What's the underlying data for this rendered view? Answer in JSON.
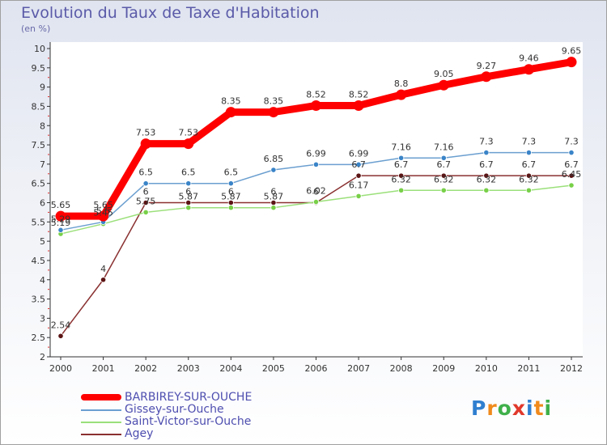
{
  "header": {
    "title": "Evolution du Taux de Taxe d'Habitation",
    "unit": "(en %)"
  },
  "brand": {
    "text": "Proxiti",
    "letter_colors": [
      "#2f7fd0",
      "#f08a1c",
      "#3fb04a",
      "#e0382b",
      "#2f7fd0",
      "#f08a1c",
      "#3fb04a"
    ]
  },
  "chart_data": {
    "type": "line",
    "title": "Evolution du Taux de Taxe d'Habitation",
    "ylabel": "(en %)",
    "xlabel": "",
    "ylim": [
      2,
      10
    ],
    "y_ticks": [
      "2",
      "2.5",
      "3",
      "3.5",
      "4",
      "4.5",
      "5",
      "5.5",
      "6",
      "6.5",
      "7",
      "7.5",
      "8",
      "8.5",
      "9",
      "9.5",
      "10"
    ],
    "categories": [
      "2000",
      "2001",
      "2002",
      "2003",
      "2004",
      "2005",
      "2006",
      "2007",
      "2008",
      "2009",
      "2010",
      "2011",
      "2012"
    ],
    "grid": false,
    "legend_position": "bottom-left",
    "series": [
      {
        "name": "BARBIREY-SUR-OUCHE",
        "color": "#ff0000",
        "marker": "#ff0000",
        "values": [
          5.65,
          5.65,
          7.53,
          7.53,
          8.35,
          8.35,
          8.52,
          8.52,
          8.8,
          9.05,
          9.27,
          9.46,
          9.65
        ],
        "labels": [
          "5.65",
          "5.65",
          "7.53",
          "7.53",
          "8.35",
          "8.35",
          "8.52",
          "8.52",
          "8.8",
          "9.05",
          "9.27",
          "9.46",
          "9.65"
        ]
      },
      {
        "name": "Gissey-sur-Ouche",
        "color": "#6b9fd0",
        "marker": "#3a84c8",
        "values": [
          5.29,
          5.5,
          6.5,
          6.5,
          6.5,
          6.85,
          6.99,
          6.99,
          7.16,
          7.16,
          7.3,
          7.3,
          7.3
        ],
        "labels": [
          "5.29",
          "5.5",
          "6.5",
          "6.5",
          "6.5",
          "6.85",
          "6.99",
          "6.99",
          "7.16",
          "7.16",
          "7.3",
          "7.3",
          "7.3"
        ]
      },
      {
        "name": "Saint-Victor-sur-Ouche",
        "color": "#9be07a",
        "marker": "#78d048",
        "values": [
          5.19,
          5.45,
          5.75,
          5.87,
          5.87,
          5.87,
          6.02,
          6.17,
          6.32,
          6.32,
          6.32,
          6.32,
          6.45
        ],
        "labels": [
          "5.19",
          "5.45",
          "5.75",
          "5.87",
          "5.87",
          "5.87",
          "6.02",
          "6.17",
          "6.32",
          "6.32",
          "6.32",
          "6.32",
          "6.45"
        ]
      },
      {
        "name": "Agey",
        "color": "#8a3030",
        "marker": "#5c1414",
        "values": [
          2.54,
          4,
          6,
          6,
          6,
          6,
          6,
          6.7,
          6.7,
          6.7,
          6.7,
          6.7,
          6.7
        ],
        "labels": [
          "2.54",
          "4",
          "6",
          "6",
          "6",
          "6",
          "6",
          "6.7",
          "6.7",
          "6.7",
          "6.7",
          "6.7",
          "6.7"
        ]
      }
    ]
  }
}
